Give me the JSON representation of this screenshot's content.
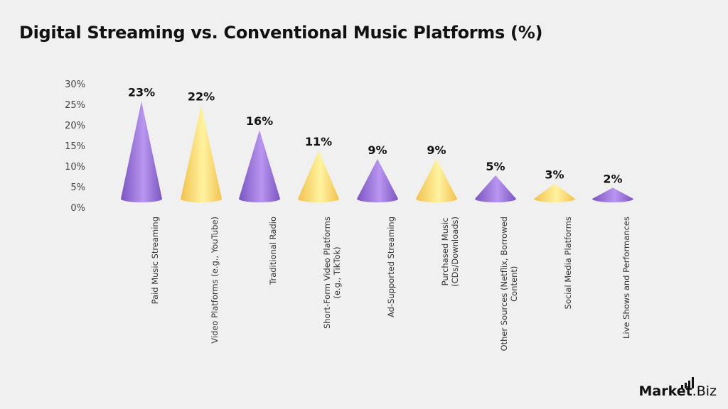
{
  "title": "Digital Streaming vs. Conventional Music Platforms (%)",
  "y_axis": {
    "ticks": [
      "30%",
      "25%",
      "20%",
      "15%",
      "10%",
      "5%",
      "0%"
    ]
  },
  "colors": {
    "purple": "#7b55c2",
    "purple_light": "#b996f0",
    "gold": "#f2c14e",
    "gold_light": "#fff3a0"
  },
  "logo": {
    "main": "Market",
    "suffix": ".Biz"
  },
  "chart_data": {
    "type": "bar",
    "title": "Digital Streaming vs. Conventional Music Platforms (%)",
    "categories": [
      "Paid Music Streaming",
      "Video Platforms (e.g., YouTube)",
      "Traditional Radio",
      "Short-Form Video Platforms (e.g., TikTok)",
      "Ad-Supported Streaming",
      "Purchased Music (CDs/Downloads)",
      "Other Sources (Netflix, Borrowed Content)",
      "Social Media Platforms",
      "Live Shows and Performances"
    ],
    "values": [
      23,
      22,
      16,
      11,
      9,
      9,
      5,
      3,
      2
    ],
    "data_labels": [
      "23%",
      "22%",
      "16%",
      "11%",
      "9%",
      "9%",
      "5%",
      "3%",
      "2%"
    ],
    "xlabel": "",
    "ylabel": "",
    "ylim": [
      0,
      30
    ],
    "yticks": [
      0,
      5,
      10,
      15,
      20,
      25,
      30
    ],
    "grid": false,
    "legend": null,
    "shape": "3D cone",
    "bar_colors": [
      "purple",
      "gold",
      "purple",
      "gold",
      "purple",
      "gold",
      "purple",
      "gold",
      "purple"
    ]
  },
  "x_labels": [
    [
      "Paid Music Streaming"
    ],
    [
      "Video Platforms (e.g., YouTube)"
    ],
    [
      "Traditional Radio"
    ],
    [
      "Short-Form Video Platforms",
      "(e.g., TikTok)"
    ],
    [
      "Ad-Supported Streaming"
    ],
    [
      "Purchased Music",
      "(CDs/Downloads)"
    ],
    [
      "Other Sources (Netflix, Borrowed",
      "Content)"
    ],
    [
      "Social Media Platforms"
    ],
    [
      "Live Shows and Performances"
    ]
  ]
}
